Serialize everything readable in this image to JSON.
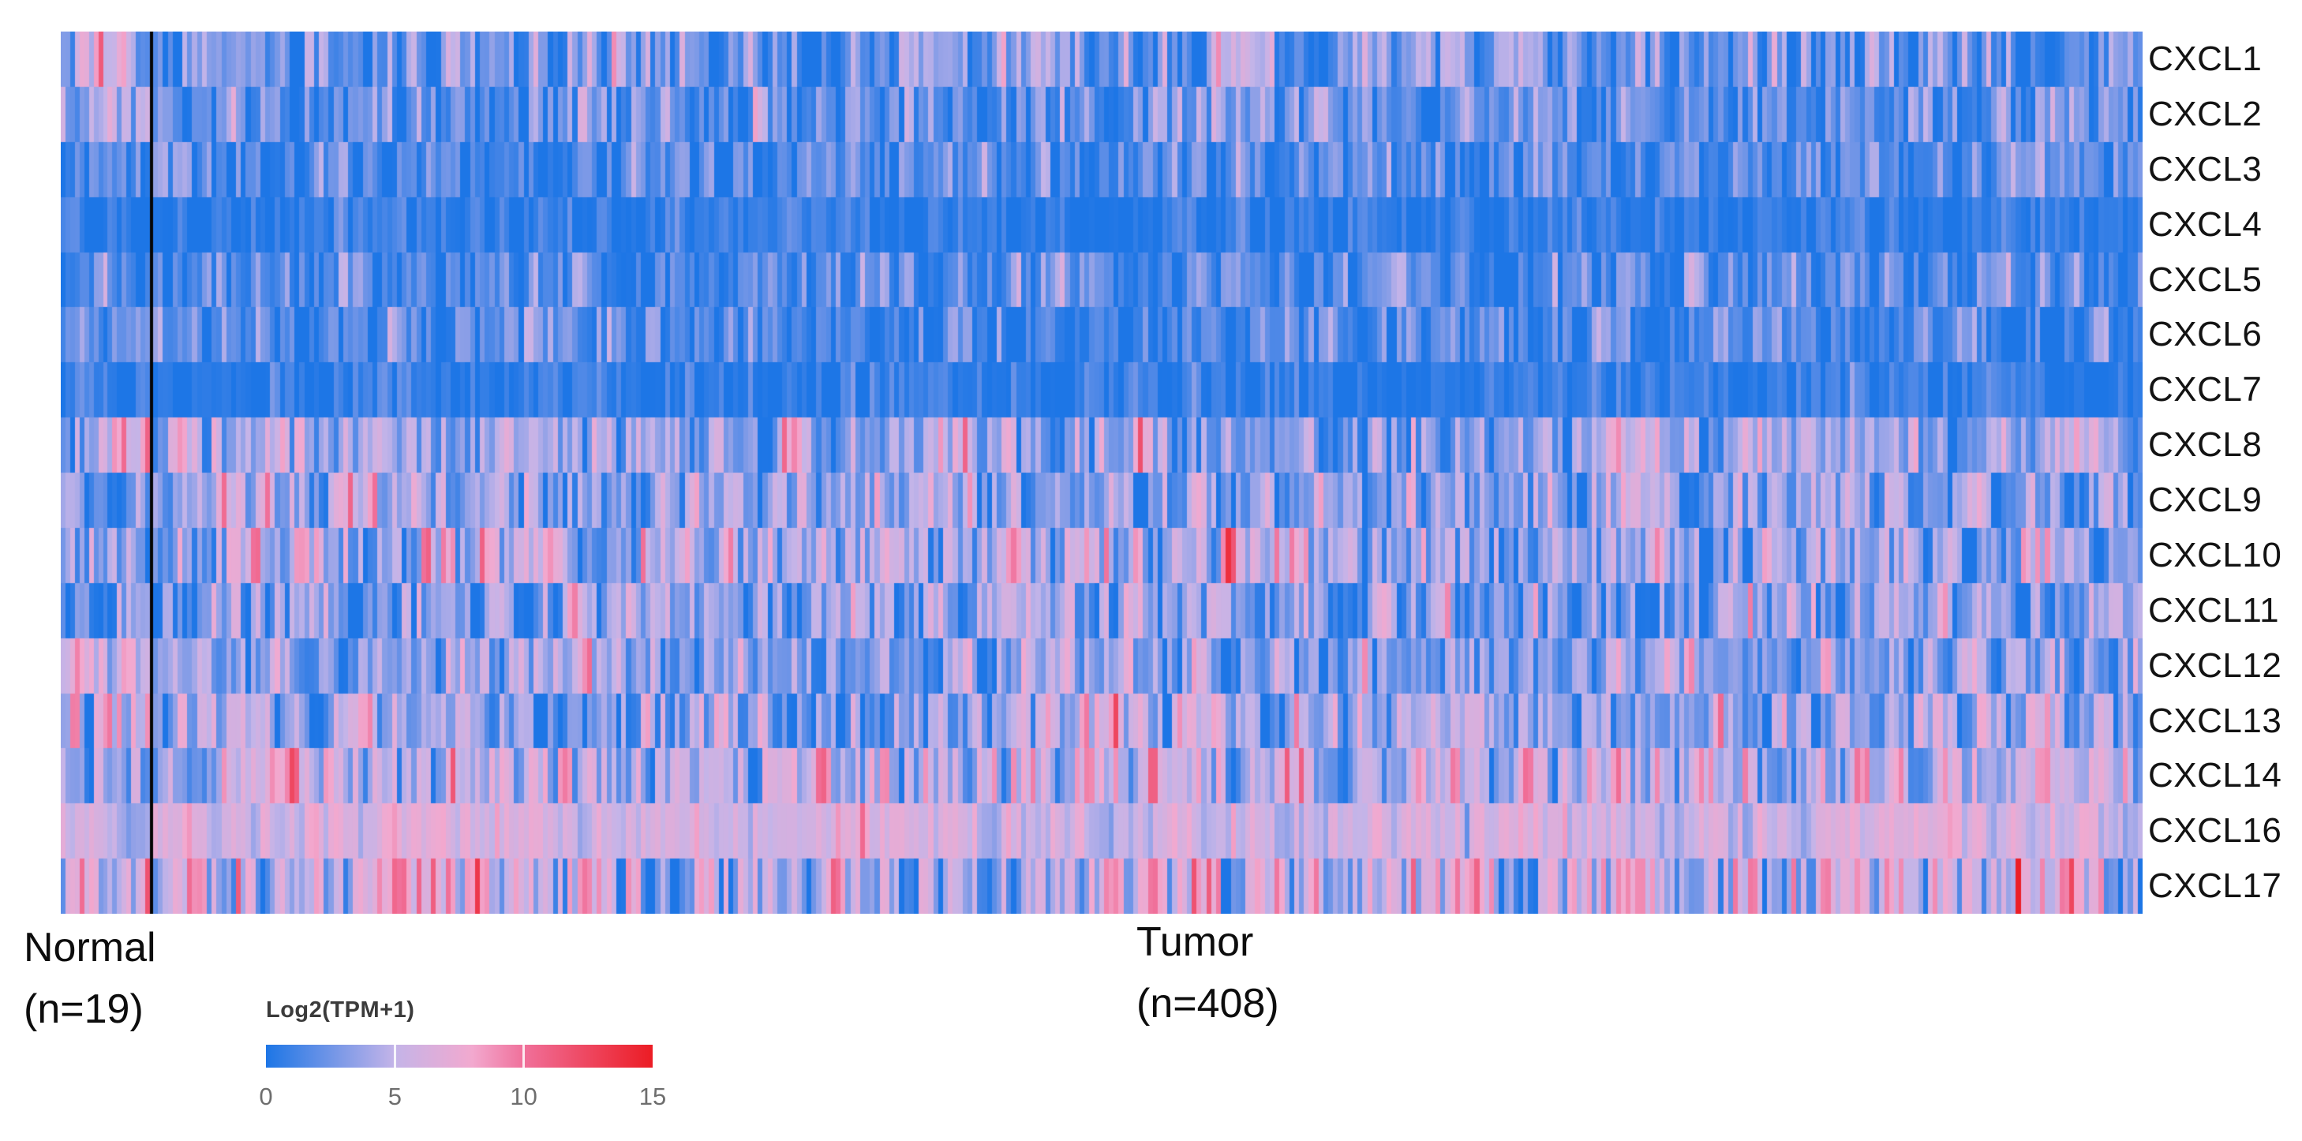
{
  "groups": {
    "normal": {
      "label": "Normal",
      "count_label": "(n=19)",
      "n": 19
    },
    "tumor": {
      "label": "Tumor",
      "count_label": "(n=408)",
      "n": 408
    }
  },
  "legend": {
    "title": "Log2(TPM+1)",
    "tick_labels": [
      "0",
      "5",
      "10",
      "15"
    ],
    "tick_values": [
      0,
      5,
      10,
      15
    ]
  },
  "colors": {
    "background": "#ffffff",
    "divider": "#060606",
    "row_label_text": "#131313",
    "group_label_text": "#0d0d0d",
    "legend_title_text": "#3b3b3b",
    "legend_tick_text": "#6e6e6e",
    "legend_tick_line": "#ffffff"
  },
  "chart_data": {
    "type": "heatmap",
    "title": "",
    "value_unit": "Log2(TPM+1)",
    "value_range": [
      0,
      15
    ],
    "colormap_stops": [
      [
        0,
        "#1d76e6"
      ],
      [
        5,
        "#c4b4e8"
      ],
      [
        8,
        "#f2a9cf"
      ],
      [
        10,
        "#f0709a"
      ],
      [
        15,
        "#ec1c24"
      ]
    ],
    "column_groups": [
      {
        "label": "Normal",
        "n": 19
      },
      {
        "label": "Tumor",
        "n": 408
      }
    ],
    "genes": [
      "CXCL1",
      "CXCL2",
      "CXCL3",
      "CXCL4",
      "CXCL5",
      "CXCL6",
      "CXCL7",
      "CXCL8",
      "CXCL9",
      "CXCL10",
      "CXCL11",
      "CXCL12",
      "CXCL13",
      "CXCL14",
      "CXCL16",
      "CXCL17"
    ],
    "row_profiles": [
      {
        "gene": "CXCL1",
        "normal": {
          "mean": 2.6,
          "sd": 2.4
        },
        "tumor": {
          "mean": 2.4,
          "sd": 2.3
        }
      },
      {
        "gene": "CXCL2",
        "normal": {
          "mean": 3.0,
          "sd": 2.2
        },
        "tumor": {
          "mean": 2.0,
          "sd": 2.0
        }
      },
      {
        "gene": "CXCL3",
        "normal": {
          "mean": 2.2,
          "sd": 1.9
        },
        "tumor": {
          "mean": 1.7,
          "sd": 1.8
        }
      },
      {
        "gene": "CXCL4",
        "normal": {
          "mean": 0.7,
          "sd": 0.9
        },
        "tumor": {
          "mean": 0.5,
          "sd": 0.9
        }
      },
      {
        "gene": "CXCL5",
        "normal": {
          "mean": 1.6,
          "sd": 2.0
        },
        "tumor": {
          "mean": 1.2,
          "sd": 1.8
        }
      },
      {
        "gene": "CXCL6",
        "normal": {
          "mean": 2.0,
          "sd": 1.9
        },
        "tumor": {
          "mean": 1.5,
          "sd": 1.7
        }
      },
      {
        "gene": "CXCL7",
        "normal": {
          "mean": 1.0,
          "sd": 1.2
        },
        "tumor": {
          "mean": 0.6,
          "sd": 1.0
        }
      },
      {
        "gene": "CXCL8",
        "normal": {
          "mean": 4.6,
          "sd": 2.6
        },
        "tumor": {
          "mean": 4.0,
          "sd": 2.5
        }
      },
      {
        "gene": "CXCL9",
        "normal": {
          "mean": 3.2,
          "sd": 2.2
        },
        "tumor": {
          "mean": 3.9,
          "sd": 2.4
        }
      },
      {
        "gene": "CXCL10",
        "normal": {
          "mean": 4.0,
          "sd": 2.4
        },
        "tumor": {
          "mean": 4.3,
          "sd": 2.7
        }
      },
      {
        "gene": "CXCL11",
        "normal": {
          "mean": 2.8,
          "sd": 2.2
        },
        "tumor": {
          "mean": 3.4,
          "sd": 2.5
        }
      },
      {
        "gene": "CXCL12",
        "normal": {
          "mean": 5.6,
          "sd": 2.0
        },
        "tumor": {
          "mean": 3.3,
          "sd": 2.2
        }
      },
      {
        "gene": "CXCL13",
        "normal": {
          "mean": 3.2,
          "sd": 3.0
        },
        "tumor": {
          "mean": 3.6,
          "sd": 2.7
        }
      },
      {
        "gene": "CXCL14",
        "normal": {
          "mean": 5.6,
          "sd": 2.3
        },
        "tumor": {
          "mean": 4.8,
          "sd": 2.5
        }
      },
      {
        "gene": "CXCL16",
        "normal": {
          "mean": 5.5,
          "sd": 1.2
        },
        "tumor": {
          "mean": 5.9,
          "sd": 1.3
        }
      },
      {
        "gene": "CXCL17",
        "normal": {
          "mean": 6.2,
          "sd": 3.2
        },
        "tumor": {
          "mean": 5.6,
          "sd": 3.0
        }
      }
    ],
    "column_correlation": 0.35,
    "seed": 20190408
  }
}
